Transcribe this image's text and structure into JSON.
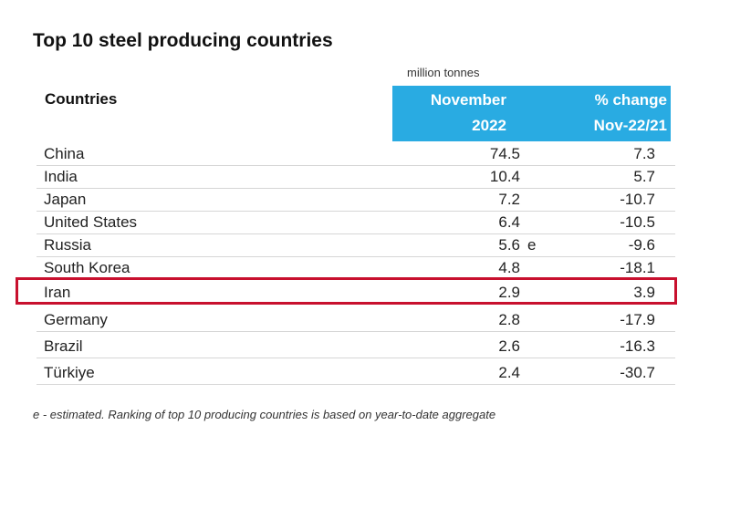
{
  "title": "Top 10 steel producing countries",
  "unit_label": "million tonnes",
  "header": {
    "countries": "Countries",
    "col_november": [
      "November",
      "2022"
    ],
    "col_change": [
      "% change",
      "Nov-22/21"
    ],
    "band_color": "#29abe2"
  },
  "highlight_color": "#c8102e",
  "highlighted_country": "Iran",
  "chart_data": {
    "type": "table",
    "title": "Top 10 steel producing countries",
    "columns": [
      "Countries",
      "November 2022",
      "% change Nov-22/21"
    ],
    "rows": [
      {
        "country": "China",
        "november_2022": "74.5",
        "flag": "",
        "pct_change": "7.3"
      },
      {
        "country": "India",
        "november_2022": "10.4",
        "flag": "",
        "pct_change": "5.7"
      },
      {
        "country": "Japan",
        "november_2022": "7.2",
        "flag": "",
        "pct_change": "-10.7"
      },
      {
        "country": "United States",
        "november_2022": "6.4",
        "flag": "",
        "pct_change": "-10.5"
      },
      {
        "country": "Russia",
        "november_2022": "5.6",
        "flag": "e",
        "pct_change": "-9.6"
      },
      {
        "country": "South Korea",
        "november_2022": "4.8",
        "flag": "",
        "pct_change": "-18.1"
      },
      {
        "country": "Iran",
        "november_2022": "2.9",
        "flag": "",
        "pct_change": "3.9"
      },
      {
        "country": "Germany",
        "november_2022": "2.8",
        "flag": "",
        "pct_change": "-17.9"
      },
      {
        "country": "Brazil",
        "november_2022": "2.6",
        "flag": "",
        "pct_change": "-16.3"
      },
      {
        "country": "Türkiye",
        "november_2022": "2.4",
        "flag": "",
        "pct_change": "-30.7"
      }
    ]
  },
  "footnote": "e - estimated. Ranking of top 10 producing countries is based on year-to-date aggregate"
}
